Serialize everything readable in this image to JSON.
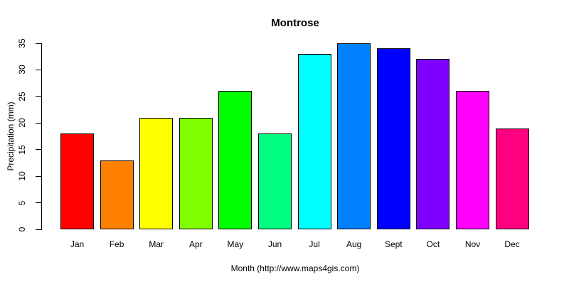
{
  "chart_data": {
    "type": "bar",
    "title": "Montrose",
    "xlabel": "Month (http://www.maps4gis.com)",
    "ylabel": "Precipitation (mm)",
    "categories": [
      "Jan",
      "Feb",
      "Mar",
      "Apr",
      "May",
      "Jun",
      "Jul",
      "Aug",
      "Sept",
      "Oct",
      "Nov",
      "Dec"
    ],
    "values": [
      18,
      13,
      21,
      21,
      26,
      18,
      33,
      35,
      34,
      32,
      26,
      19
    ],
    "bar_colors": [
      "#FF0000",
      "#FF8000",
      "#FFFF00",
      "#80FF00",
      "#00FF00",
      "#00FF80",
      "#00FFFF",
      "#0080FF",
      "#0000FF",
      "#8000FF",
      "#FF00FF",
      "#FF0080"
    ],
    "bar_border_color": "#000000",
    "ylim": [
      0,
      35
    ],
    "yticks": [
      0,
      5,
      10,
      15,
      20,
      25,
      30,
      35
    ],
    "grid": false,
    "legend": null,
    "background": "#FFFFFF",
    "text_color": "#000000"
  }
}
